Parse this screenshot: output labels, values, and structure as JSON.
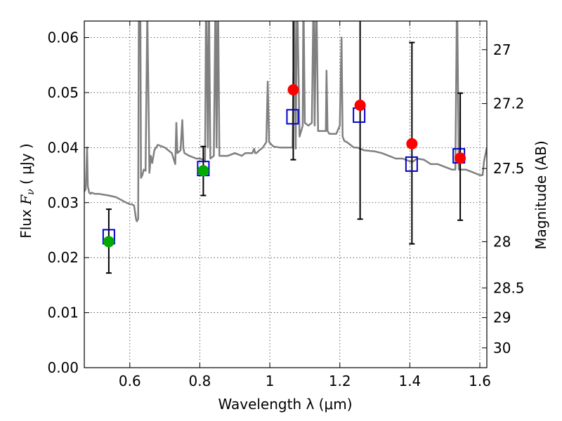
{
  "chart_data": {
    "type": "scatter",
    "title": "",
    "xlabel": "Wavelength  λ (μm)",
    "ylabel_prefix": "Flux  ",
    "ylabel_symbol": "F",
    "ylabel_subscript": "ν",
    "ylabel_suffix": "  ( μJy )",
    "y2label": "Magnitude (AB)",
    "xlim": [
      0.47,
      1.62
    ],
    "ylim": [
      0.0,
      0.063
    ],
    "grid": true,
    "x_ticks": [
      {
        "value": 0.6,
        "label": "0.6"
      },
      {
        "value": 0.8,
        "label": "0.8"
      },
      {
        "value": 1.0,
        "label": "1"
      },
      {
        "value": 1.2,
        "label": "1.2"
      },
      {
        "value": 1.4,
        "label": "1.4"
      },
      {
        "value": 1.6,
        "label": "1.6"
      }
    ],
    "y_ticks": [
      {
        "value": 0.0,
        "label": "0.00"
      },
      {
        "value": 0.01,
        "label": "0.01"
      },
      {
        "value": 0.02,
        "label": "0.02"
      },
      {
        "value": 0.03,
        "label": "0.03"
      },
      {
        "value": 0.04,
        "label": "0.04"
      },
      {
        "value": 0.05,
        "label": "0.05"
      },
      {
        "value": 0.06,
        "label": "0.06"
      }
    ],
    "y2_ticks": [
      {
        "flux": 0.0578,
        "label": "27"
      },
      {
        "flux": 0.048,
        "label": "27.2"
      },
      {
        "flux": 0.0362,
        "label": "27.5"
      },
      {
        "flux": 0.0229,
        "label": "28"
      },
      {
        "flux": 0.0145,
        "label": "28.5"
      },
      {
        "flux": 0.0091,
        "label": "29"
      },
      {
        "flux": 0.0036,
        "label": "30"
      }
    ],
    "series": [
      {
        "name": "model_spectrum",
        "kind": "line",
        "color": "#808080",
        "x": [
          0.47,
          0.474,
          0.478,
          0.48,
          0.484,
          0.488,
          0.49,
          0.5,
          0.51,
          0.52,
          0.54,
          0.56,
          0.575,
          0.59,
          0.6,
          0.605,
          0.612,
          0.618,
          0.62,
          0.624,
          0.626,
          0.63,
          0.632,
          0.636,
          0.64,
          0.645,
          0.65,
          0.656,
          0.66,
          0.664,
          0.67,
          0.68,
          0.7,
          0.72,
          0.73,
          0.733,
          0.736,
          0.745,
          0.75,
          0.753,
          0.756,
          0.77,
          0.79,
          0.8,
          0.81,
          0.815,
          0.818,
          0.823,
          0.826,
          0.83,
          0.84,
          0.845,
          0.848,
          0.852,
          0.856,
          0.86,
          0.88,
          0.9,
          0.92,
          0.93,
          0.94,
          0.95,
          0.955,
          0.958,
          0.962,
          0.97,
          0.98,
          0.99,
          0.994,
          0.998,
          1.01,
          1.03,
          1.05,
          1.06,
          1.065,
          1.07,
          1.074,
          1.078,
          1.085,
          1.094,
          1.096,
          1.1,
          1.11,
          1.12,
          1.125,
          1.128,
          1.133,
          1.138,
          1.145,
          1.16,
          1.162,
          1.165,
          1.17,
          1.18,
          1.19,
          1.2,
          1.205,
          1.208,
          1.213,
          1.22,
          1.23,
          1.24,
          1.25,
          1.27,
          1.3,
          1.32,
          1.34,
          1.36,
          1.38,
          1.4,
          1.41,
          1.42,
          1.44,
          1.46,
          1.48,
          1.5,
          1.52,
          1.53,
          1.535,
          1.54,
          1.55,
          1.56,
          1.58,
          1.6,
          1.608,
          1.612,
          1.62
        ],
        "y": [
          0.032,
          0.0325,
          0.04,
          0.033,
          0.0318,
          0.0316,
          0.0318,
          0.0316,
          0.0316,
          0.0315,
          0.0313,
          0.031,
          0.0305,
          0.03,
          0.0297,
          0.0297,
          0.0295,
          0.027,
          0.0266,
          0.027,
          0.069,
          0.069,
          0.0345,
          0.035,
          0.036,
          0.0358,
          0.065,
          0.0354,
          0.0385,
          0.0372,
          0.0395,
          0.0405,
          0.04,
          0.039,
          0.037,
          0.0445,
          0.039,
          0.0395,
          0.045,
          0.04,
          0.039,
          0.0385,
          0.038,
          0.038,
          0.0378,
          0.0375,
          0.069,
          0.04,
          0.069,
          0.038,
          0.0385,
          0.069,
          0.04,
          0.069,
          0.0385,
          0.0385,
          0.0385,
          0.039,
          0.0385,
          0.039,
          0.039,
          0.039,
          0.0398,
          0.039,
          0.039,
          0.0395,
          0.04,
          0.041,
          0.052,
          0.041,
          0.0402,
          0.04,
          0.04,
          0.04,
          0.04,
          0.069,
          0.0398,
          0.069,
          0.042,
          0.044,
          0.069,
          0.0445,
          0.044,
          0.0445,
          0.069,
          0.044,
          0.069,
          0.043,
          0.043,
          0.043,
          0.054,
          0.043,
          0.0425,
          0.0425,
          0.0425,
          0.044,
          0.06,
          0.042,
          0.0412,
          0.041,
          0.0405,
          0.04,
          0.04,
          0.0395,
          0.0393,
          0.039,
          0.0385,
          0.038,
          0.038,
          0.0375,
          0.0375,
          0.038,
          0.0378,
          0.037,
          0.037,
          0.0365,
          0.036,
          0.036,
          0.069,
          0.036,
          0.036,
          0.036,
          0.0355,
          0.035,
          0.035,
          0.0375,
          0.04
        ]
      },
      {
        "name": "model_photometry",
        "kind": "open_square",
        "color": "#0000cc",
        "x": [
          0.54,
          0.81,
          1.065,
          1.255,
          1.405,
          1.54
        ],
        "y": [
          0.0238,
          0.0362,
          0.0456,
          0.0459,
          0.037,
          0.0385
        ]
      },
      {
        "name": "detections",
        "kind": "filled_circle",
        "color": "#00aa00",
        "x": [
          0.54,
          0.81
        ],
        "y": [
          0.0229,
          0.0358
        ],
        "err_low": [
          0.0172,
          0.0313
        ],
        "err_high": [
          0.0288,
          0.0402
        ]
      },
      {
        "name": "upper_limits",
        "kind": "filled_circle",
        "color": "#ff0000",
        "x": [
          1.067,
          1.258,
          1.406,
          1.544
        ],
        "y": [
          0.0505,
          0.0477,
          0.0407,
          0.0381
        ],
        "err_low": [
          0.0378,
          0.027,
          0.0225,
          0.0268
        ],
        "err_high": [
          0.063,
          0.063,
          0.0591,
          0.0499
        ]
      }
    ]
  }
}
